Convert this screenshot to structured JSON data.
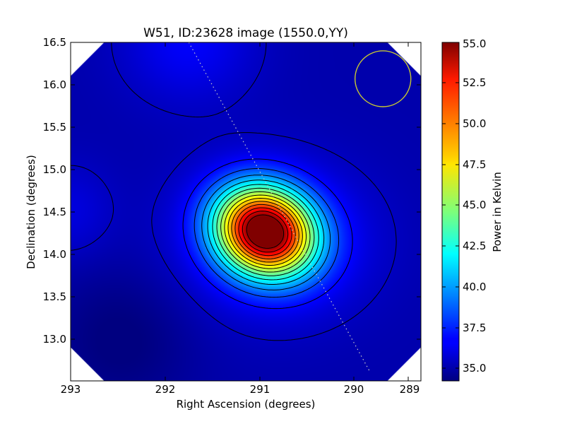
{
  "chart_data": {
    "type": "heatmap",
    "title": "W51, ID:23628 image (1550.0,YY)",
    "xlabel": "Right Ascension (degrees)",
    "ylabel": "Declination (degrees)",
    "colorbar_label": "Power in Kelvin",
    "xlim": [
      293.0,
      288.85
    ],
    "ylim": [
      12.5,
      16.5
    ],
    "x_ticks": [
      293,
      292,
      291,
      290,
      289
    ],
    "x_tick_labels": [
      "293",
      "292",
      "291",
      "290",
      "289"
    ],
    "y_ticks": [
      13.0,
      13.5,
      14.0,
      14.5,
      15.0,
      15.5,
      16.0,
      16.5
    ],
    "y_tick_labels": [
      "13.0",
      "13.5",
      "14.0",
      "14.5",
      "15.0",
      "15.5",
      "16.0",
      "16.5"
    ],
    "color_range": [
      34.3,
      55.0
    ],
    "colorbar_ticks": [
      35.0,
      37.5,
      40.0,
      42.5,
      45.0,
      47.5,
      50.0,
      52.5,
      55.0
    ],
    "colorbar_tick_labels": [
      "35.0",
      "37.5",
      "40.0",
      "42.5",
      "45.0",
      "47.5",
      "50.0",
      "52.5",
      "55.0"
    ],
    "colormap": "jet",
    "source_peak": {
      "ra": 290.7,
      "dec": 14.27,
      "power": 55.0
    },
    "secondary_peak": {
      "ra": 291.6,
      "dec": 16.5,
      "power": 36.8
    },
    "background_level": 35.2,
    "contour_color": "#000000",
    "beam_circle": {
      "ra": 289.3,
      "dec": 16.07,
      "radius_deg": 0.33,
      "color": "#c8c832"
    },
    "dotted_line": {
      "start": {
        "ra": 291.6,
        "dec": 16.5
      },
      "end": {
        "ra": 289.45,
        "dec": 12.6
      },
      "color": "#c8c8c8"
    }
  }
}
